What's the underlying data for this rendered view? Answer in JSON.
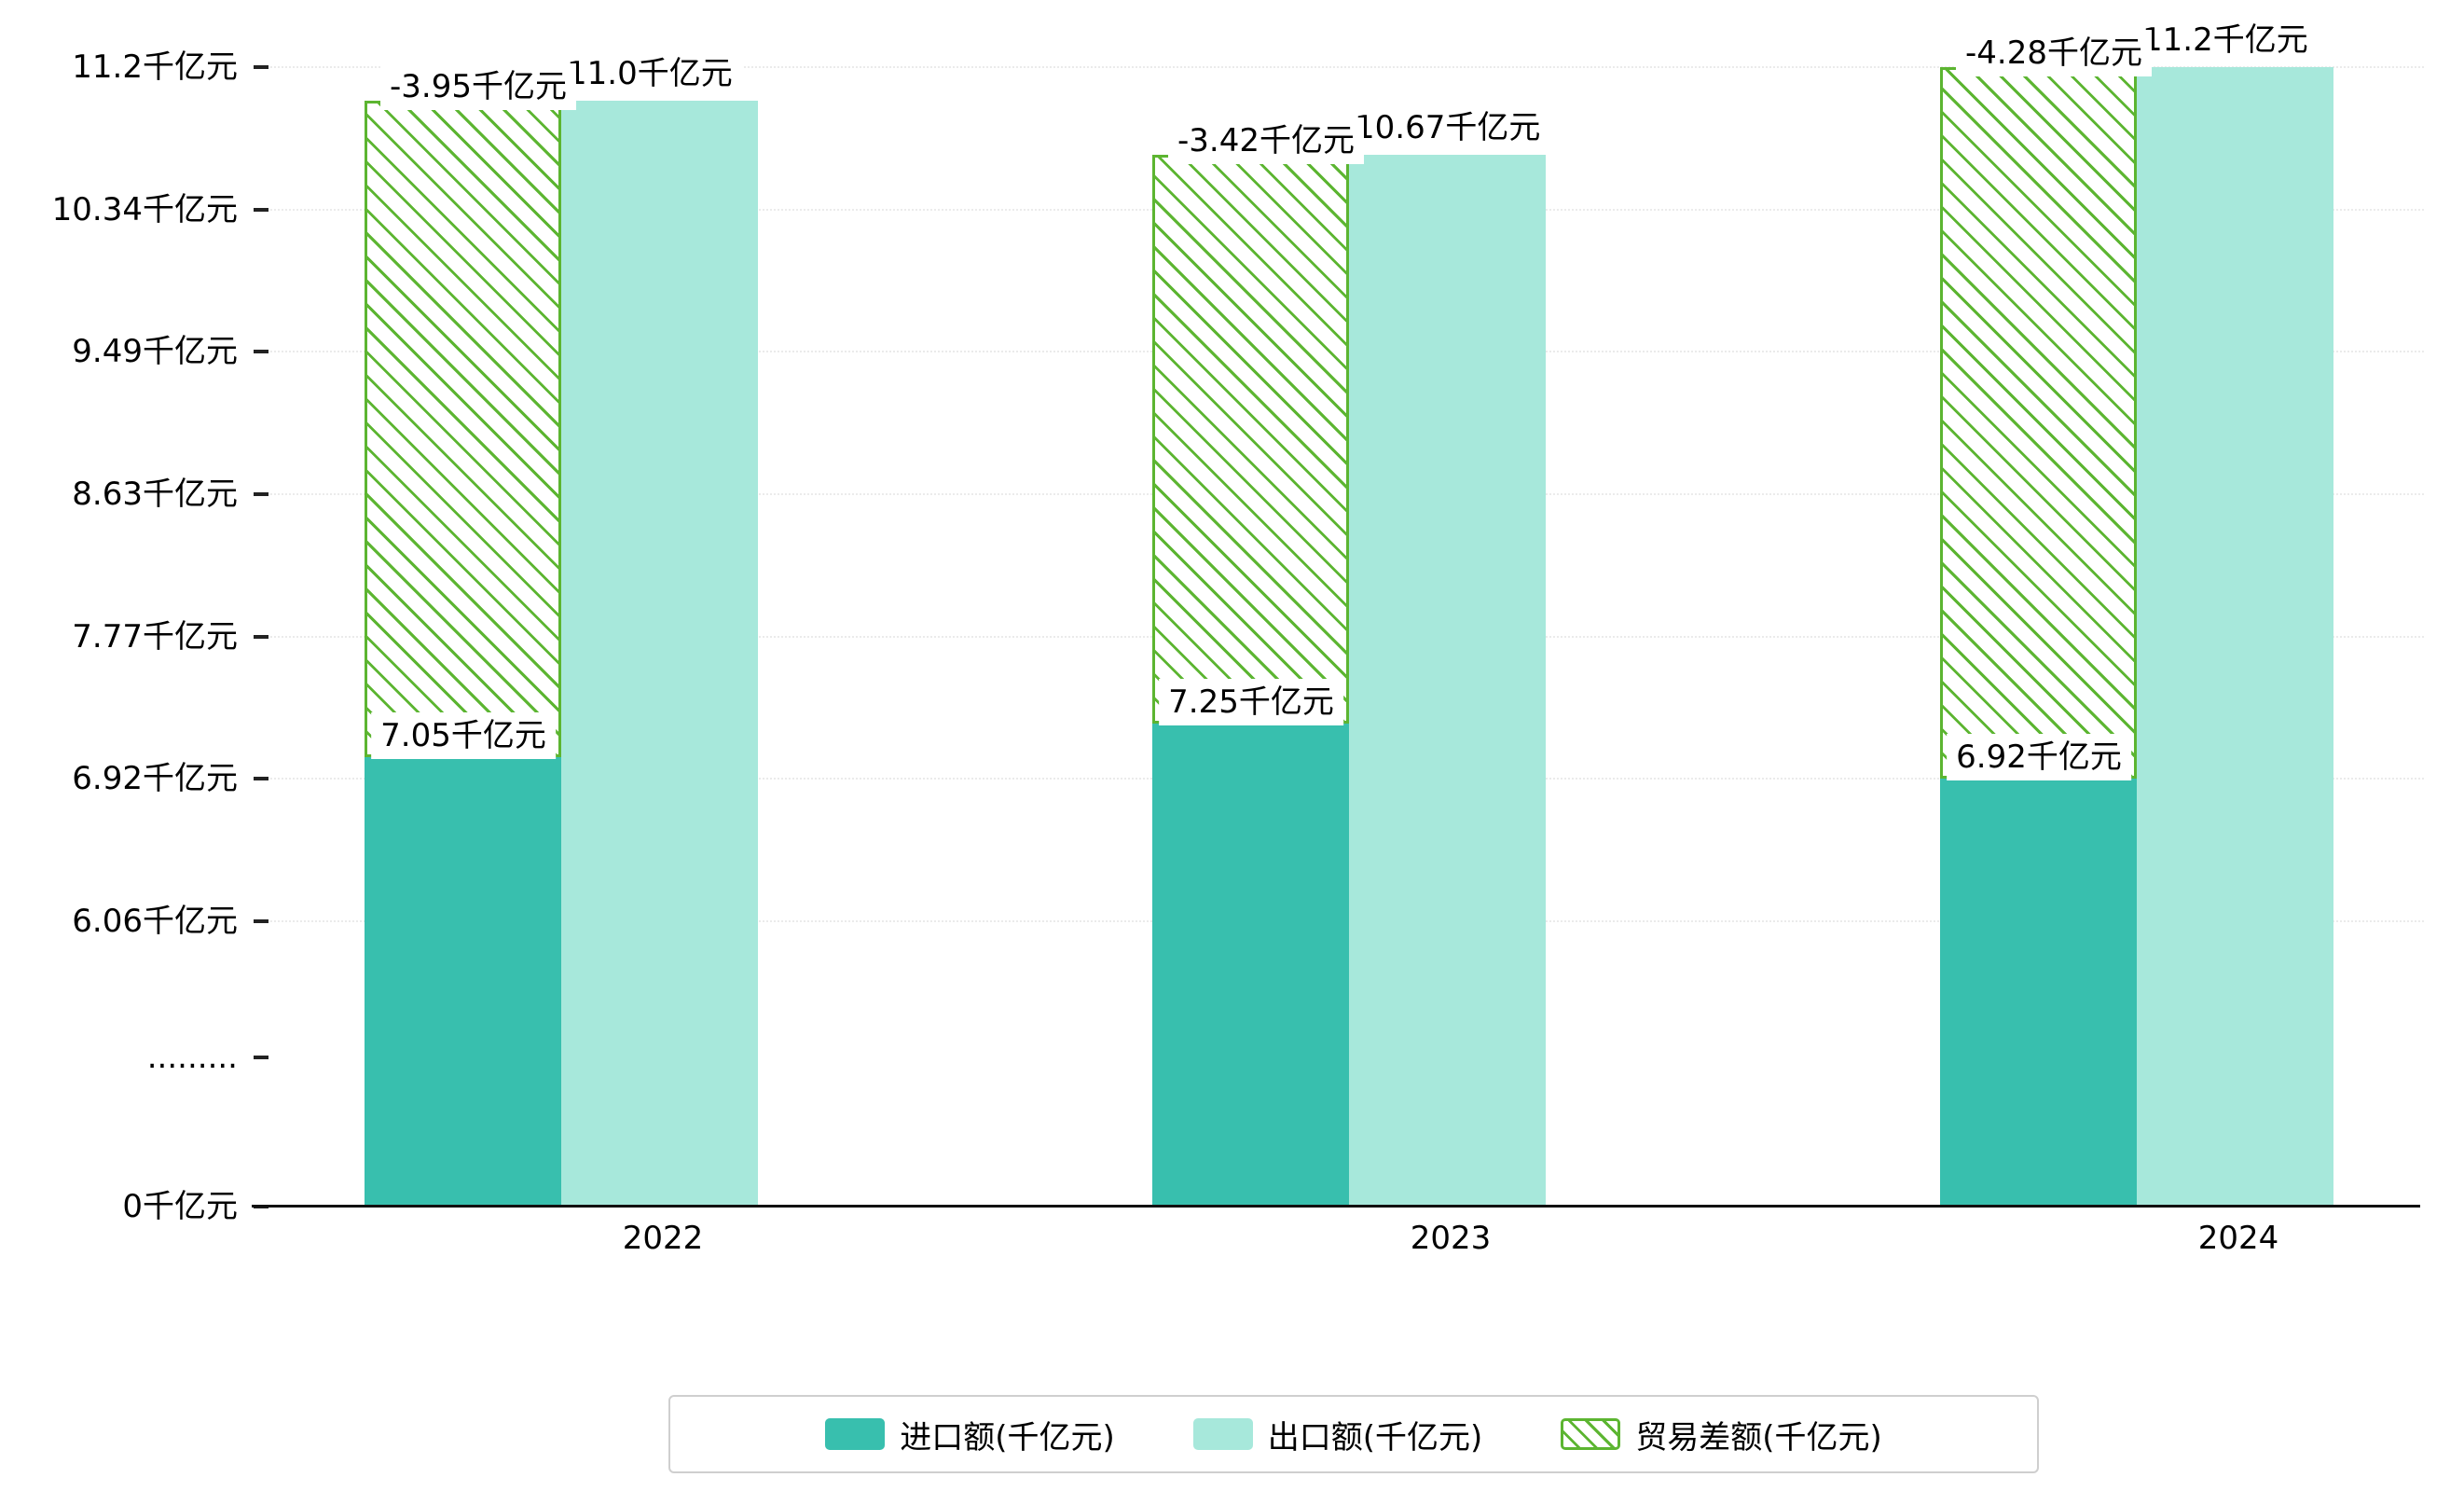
{
  "chart_data": {
    "type": "bar",
    "categories": [
      "2022",
      "2023",
      "2024"
    ],
    "unit": "千亿元",
    "series": [
      {
        "name": "进口额(千亿元)",
        "style": "solid",
        "color": "#38bfae",
        "values": [
          7.05,
          7.25,
          6.92
        ],
        "data_labels": [
          "7.05千亿元",
          "7.25千亿元",
          "6.92千亿元"
        ]
      },
      {
        "name": "出口额(千亿元)",
        "style": "solid",
        "color": "#a7e8db",
        "values": [
          11.0,
          10.67,
          11.2
        ],
        "data_labels": [
          "11.0千亿元",
          "10.67千亿元",
          "11.2千亿元"
        ]
      },
      {
        "name": "贸易差额(千亿元)",
        "style": "hatched",
        "color": "#5cb531",
        "values": [
          -3.95,
          -3.42,
          -4.28
        ],
        "data_labels": [
          "-3.95千亿元",
          "-3.42千亿元",
          "-4.28千亿元"
        ],
        "render": "floating bar spanning from import bar top to export bar top"
      }
    ],
    "x_axis": {
      "labels": [
        "2022",
        "2023",
        "2024"
      ]
    },
    "y_axis": {
      "tick_labels": [
        "11.2千亿元",
        "10.34千亿元",
        "9.49千亿元",
        "8.63千亿元",
        "7.77千亿元",
        "6.92千亿元",
        "6.06千亿元",
        ".........",
        "0千亿元"
      ],
      "tick_values": [
        11.2,
        10.34,
        9.49,
        8.63,
        7.77,
        6.92,
        6.06,
        null,
        0
      ],
      "broken_axis": true,
      "range_above_break": [
        6.06,
        11.2
      ]
    },
    "grid": true,
    "legend": {
      "position": "bottom",
      "items": [
        {
          "label": "进口额(千亿元)",
          "swatch": "solid-teal"
        },
        {
          "label": "出口额(千亿元)",
          "swatch": "solid-aqua"
        },
        {
          "label": "贸易差额(千亿元)",
          "swatch": "hatched-green"
        }
      ]
    }
  },
  "colors": {
    "import_bar": "#38bfae",
    "export_bar": "#a7e8db",
    "balance_hatch": "#5cb531",
    "axis_line": "#111111",
    "grid_line": "#dcdcdc",
    "label_bg": "#ffffff",
    "legend_border": "#cfcfcf",
    "text": "#000000"
  }
}
